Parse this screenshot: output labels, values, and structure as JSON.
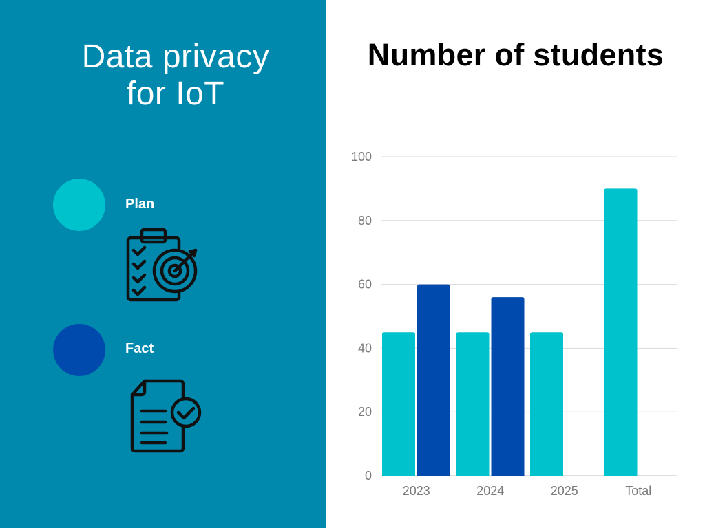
{
  "left": {
    "title_line1": "Data privacy",
    "title_line2": "for IoT",
    "legend": [
      {
        "label": "Plan",
        "color": "#00c2cc",
        "icon": "clipboard-target-icon"
      },
      {
        "label": "Fact",
        "color": "#004aad",
        "icon": "document-check-icon"
      }
    ]
  },
  "colors": {
    "panel": "#0088ad",
    "plan": "#00c2cc",
    "fact": "#004aad",
    "grid": "#d9d9d9",
    "tick": "#7a7a7a"
  },
  "chart_data": {
    "type": "bar",
    "title": "Number of students",
    "categories": [
      "2023",
      "2024",
      "2025",
      "Total"
    ],
    "series": [
      {
        "name": "Plan",
        "values": [
          45,
          45,
          45,
          90
        ]
      },
      {
        "name": "Fact",
        "values": [
          60,
          56,
          null,
          null
        ]
      }
    ],
    "ylim": [
      0,
      100
    ],
    "yticks": [
      0,
      20,
      40,
      60,
      80,
      100
    ],
    "grid": true,
    "xlabel": "",
    "ylabel": ""
  }
}
